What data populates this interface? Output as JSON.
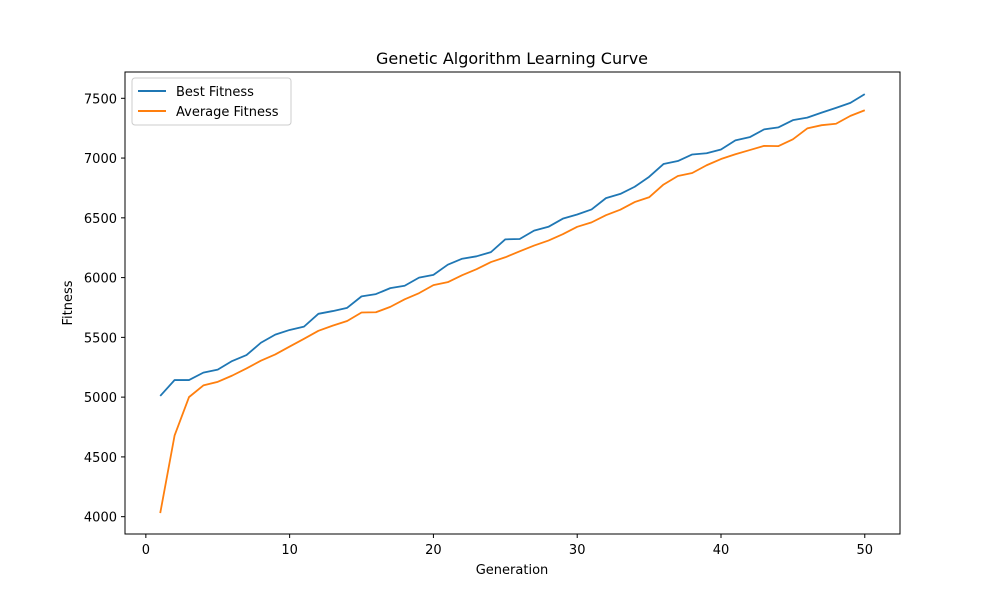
{
  "chart_data": {
    "type": "line",
    "title": "Genetic Algorithm Learning Curve",
    "xlabel": "Generation",
    "ylabel": "Fitness",
    "xlim": [
      -1.45,
      52.45
    ],
    "ylim": [
      3855,
      7720
    ],
    "xticks": [
      0,
      10,
      20,
      30,
      40,
      50
    ],
    "yticks": [
      4000,
      4500,
      5000,
      5500,
      6000,
      6500,
      7000,
      7500
    ],
    "grid": false,
    "legend_position": "top-left",
    "x": [
      1,
      2,
      3,
      4,
      5,
      6,
      7,
      8,
      9,
      10,
      11,
      12,
      13,
      14,
      15,
      16,
      17,
      18,
      19,
      20,
      21,
      22,
      23,
      24,
      25,
      26,
      27,
      28,
      29,
      30,
      31,
      32,
      33,
      34,
      35,
      36,
      37,
      38,
      39,
      40,
      41,
      42,
      43,
      44,
      45,
      46,
      47,
      48,
      49,
      50
    ],
    "series": [
      {
        "name": "Best Fitness",
        "color": "#1f77b4",
        "values": [
          5010,
          5143,
          5143,
          5205,
          5230,
          5302,
          5352,
          5455,
          5523,
          5562,
          5590,
          5697,
          5720,
          5747,
          5843,
          5862,
          5912,
          5932,
          6000,
          6023,
          6108,
          6158,
          6178,
          6213,
          6320,
          6323,
          6393,
          6425,
          6493,
          6528,
          6570,
          6665,
          6700,
          6760,
          6843,
          6950,
          6975,
          7030,
          7040,
          7072,
          7148,
          7175,
          7240,
          7257,
          7317,
          7338,
          7380,
          7420,
          7462,
          7535
        ]
      },
      {
        "name": "Average Fitness",
        "color": "#ff7f0e",
        "values": [
          4030,
          4680,
          5000,
          5098,
          5128,
          5180,
          5240,
          5305,
          5357,
          5423,
          5488,
          5555,
          5598,
          5637,
          5708,
          5710,
          5755,
          5818,
          5870,
          5937,
          5962,
          6020,
          6070,
          6130,
          6170,
          6220,
          6268,
          6310,
          6363,
          6425,
          6462,
          6522,
          6568,
          6632,
          6672,
          6778,
          6850,
          6875,
          6940,
          6992,
          7032,
          7067,
          7102,
          7100,
          7157,
          7248,
          7275,
          7287,
          7353,
          7400
        ]
      }
    ]
  }
}
